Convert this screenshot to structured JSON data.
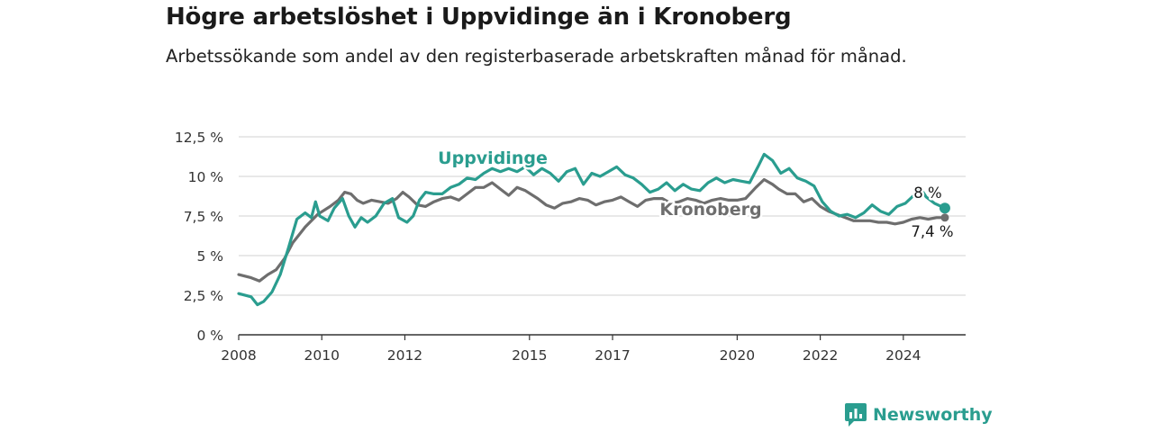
{
  "header": {
    "title": "Högre arbetslöshet i Uppvidinge än i Kronoberg",
    "subtitle": "Arbetssökande som andel av den registerbaserade arbetskraften månad för månad."
  },
  "brand": {
    "name": "Newsworthy",
    "color": "#2a9d8f"
  },
  "chart_data": {
    "type": "line",
    "title": "Högre arbetslöshet i Uppvidinge än i Kronoberg",
    "subtitle": "Arbetssökande som andel av den registerbaserade arbetskraften månad för månad.",
    "xlabel": "",
    "ylabel": "",
    "ylim": [
      0,
      12.5
    ],
    "yticks": [
      0,
      2.5,
      5,
      7.5,
      10,
      12.5
    ],
    "ytick_labels": [
      "0 %",
      "2,5 %",
      "5 %",
      "7,5 %",
      "10 %",
      "12,5 %"
    ],
    "xlim": [
      2008,
      2025.5
    ],
    "xticks": [
      2008,
      2010,
      2012,
      2015,
      2017,
      2020,
      2022,
      2024
    ],
    "xtick_labels": [
      "2008",
      "2010",
      "2012",
      "2015",
      "2017",
      "2020",
      "2022",
      "2024"
    ],
    "grid": "horizontal",
    "series": [
      {
        "name": "Kronoberg",
        "color": "#6e6e6e",
        "end_label": "7,4 %",
        "points": [
          [
            2008.0,
            3.8
          ],
          [
            2008.3,
            3.6
          ],
          [
            2008.5,
            3.4
          ],
          [
            2008.7,
            3.8
          ],
          [
            2008.9,
            4.1
          ],
          [
            2009.1,
            4.8
          ],
          [
            2009.3,
            5.8
          ],
          [
            2009.6,
            6.8
          ],
          [
            2009.9,
            7.6
          ],
          [
            2010.2,
            8.1
          ],
          [
            2010.4,
            8.5
          ],
          [
            2010.55,
            9.0
          ],
          [
            2010.7,
            8.9
          ],
          [
            2010.85,
            8.5
          ],
          [
            2011.0,
            8.3
          ],
          [
            2011.2,
            8.5
          ],
          [
            2011.4,
            8.4
          ],
          [
            2011.6,
            8.3
          ],
          [
            2011.8,
            8.6
          ],
          [
            2011.95,
            9.0
          ],
          [
            2012.1,
            8.7
          ],
          [
            2012.3,
            8.2
          ],
          [
            2012.5,
            8.1
          ],
          [
            2012.7,
            8.4
          ],
          [
            2012.9,
            8.6
          ],
          [
            2013.1,
            8.7
          ],
          [
            2013.3,
            8.5
          ],
          [
            2013.5,
            8.9
          ],
          [
            2013.7,
            9.3
          ],
          [
            2013.9,
            9.3
          ],
          [
            2014.1,
            9.6
          ],
          [
            2014.3,
            9.2
          ],
          [
            2014.5,
            8.8
          ],
          [
            2014.7,
            9.3
          ],
          [
            2014.9,
            9.1
          ],
          [
            2015.2,
            8.6
          ],
          [
            2015.4,
            8.2
          ],
          [
            2015.6,
            8.0
          ],
          [
            2015.8,
            8.3
          ],
          [
            2016.0,
            8.4
          ],
          [
            2016.2,
            8.6
          ],
          [
            2016.4,
            8.5
          ],
          [
            2016.6,
            8.2
          ],
          [
            2016.8,
            8.4
          ],
          [
            2017.0,
            8.5
          ],
          [
            2017.2,
            8.7
          ],
          [
            2017.4,
            8.4
          ],
          [
            2017.6,
            8.1
          ],
          [
            2017.8,
            8.5
          ],
          [
            2018.0,
            8.6
          ],
          [
            2018.2,
            8.6
          ],
          [
            2018.4,
            8.3
          ],
          [
            2018.6,
            8.4
          ],
          [
            2018.8,
            8.6
          ],
          [
            2019.0,
            8.5
          ],
          [
            2019.2,
            8.3
          ],
          [
            2019.4,
            8.5
          ],
          [
            2019.6,
            8.6
          ],
          [
            2019.8,
            8.5
          ],
          [
            2020.0,
            8.5
          ],
          [
            2020.2,
            8.6
          ],
          [
            2020.45,
            9.3
          ],
          [
            2020.65,
            9.8
          ],
          [
            2020.85,
            9.5
          ],
          [
            2021.0,
            9.2
          ],
          [
            2021.2,
            8.9
          ],
          [
            2021.4,
            8.9
          ],
          [
            2021.6,
            8.4
          ],
          [
            2021.8,
            8.6
          ],
          [
            2022.0,
            8.1
          ],
          [
            2022.2,
            7.8
          ],
          [
            2022.4,
            7.6
          ],
          [
            2022.6,
            7.4
          ],
          [
            2022.8,
            7.2
          ],
          [
            2023.0,
            7.2
          ],
          [
            2023.2,
            7.2
          ],
          [
            2023.4,
            7.1
          ],
          [
            2023.6,
            7.1
          ],
          [
            2023.8,
            7.0
          ],
          [
            2024.0,
            7.1
          ],
          [
            2024.2,
            7.3
          ],
          [
            2024.4,
            7.4
          ],
          [
            2024.6,
            7.3
          ],
          [
            2024.8,
            7.4
          ],
          [
            2025.0,
            7.4
          ]
        ]
      },
      {
        "name": "Uppvidinge",
        "color": "#2a9d8f",
        "end_label": "8 %",
        "points": [
          [
            2008.0,
            2.6
          ],
          [
            2008.3,
            2.4
          ],
          [
            2008.45,
            1.9
          ],
          [
            2008.6,
            2.1
          ],
          [
            2008.8,
            2.7
          ],
          [
            2009.0,
            3.8
          ],
          [
            2009.2,
            5.5
          ],
          [
            2009.4,
            7.3
          ],
          [
            2009.6,
            7.7
          ],
          [
            2009.75,
            7.4
          ],
          [
            2009.85,
            8.4
          ],
          [
            2009.95,
            7.5
          ],
          [
            2010.15,
            7.2
          ],
          [
            2010.3,
            8.0
          ],
          [
            2010.5,
            8.6
          ],
          [
            2010.65,
            7.5
          ],
          [
            2010.8,
            6.8
          ],
          [
            2010.95,
            7.4
          ],
          [
            2011.1,
            7.1
          ],
          [
            2011.3,
            7.5
          ],
          [
            2011.5,
            8.3
          ],
          [
            2011.7,
            8.6
          ],
          [
            2011.85,
            7.4
          ],
          [
            2012.05,
            7.1
          ],
          [
            2012.2,
            7.5
          ],
          [
            2012.35,
            8.5
          ],
          [
            2012.5,
            9.0
          ],
          [
            2012.7,
            8.9
          ],
          [
            2012.9,
            8.9
          ],
          [
            2013.1,
            9.3
          ],
          [
            2013.3,
            9.5
          ],
          [
            2013.5,
            9.9
          ],
          [
            2013.7,
            9.8
          ],
          [
            2013.9,
            10.2
          ],
          [
            2014.1,
            10.5
          ],
          [
            2014.3,
            10.3
          ],
          [
            2014.5,
            10.5
          ],
          [
            2014.7,
            10.3
          ],
          [
            2014.9,
            10.6
          ],
          [
            2015.1,
            10.1
          ],
          [
            2015.3,
            10.5
          ],
          [
            2015.5,
            10.2
          ],
          [
            2015.7,
            9.7
          ],
          [
            2015.9,
            10.3
          ],
          [
            2016.1,
            10.5
          ],
          [
            2016.3,
            9.5
          ],
          [
            2016.5,
            10.2
          ],
          [
            2016.7,
            10.0
          ],
          [
            2016.9,
            10.3
          ],
          [
            2017.1,
            10.6
          ],
          [
            2017.3,
            10.1
          ],
          [
            2017.5,
            9.9
          ],
          [
            2017.7,
            9.5
          ],
          [
            2017.9,
            9.0
          ],
          [
            2018.1,
            9.2
          ],
          [
            2018.3,
            9.6
          ],
          [
            2018.5,
            9.1
          ],
          [
            2018.7,
            9.5
          ],
          [
            2018.9,
            9.2
          ],
          [
            2019.1,
            9.1
          ],
          [
            2019.3,
            9.6
          ],
          [
            2019.5,
            9.9
          ],
          [
            2019.7,
            9.6
          ],
          [
            2019.9,
            9.8
          ],
          [
            2020.1,
            9.7
          ],
          [
            2020.3,
            9.6
          ],
          [
            2020.5,
            10.6
          ],
          [
            2020.65,
            11.4
          ],
          [
            2020.85,
            11.0
          ],
          [
            2021.05,
            10.2
          ],
          [
            2021.25,
            10.5
          ],
          [
            2021.45,
            9.9
          ],
          [
            2021.65,
            9.7
          ],
          [
            2021.85,
            9.4
          ],
          [
            2022.05,
            8.4
          ],
          [
            2022.25,
            7.8
          ],
          [
            2022.45,
            7.5
          ],
          [
            2022.65,
            7.6
          ],
          [
            2022.85,
            7.4
          ],
          [
            2023.05,
            7.7
          ],
          [
            2023.25,
            8.2
          ],
          [
            2023.45,
            7.8
          ],
          [
            2023.65,
            7.6
          ],
          [
            2023.85,
            8.1
          ],
          [
            2024.05,
            8.3
          ],
          [
            2024.25,
            8.8
          ],
          [
            2024.4,
            9.3
          ],
          [
            2024.55,
            8.7
          ],
          [
            2024.75,
            8.3
          ],
          [
            2025.0,
            8.0
          ]
        ]
      }
    ]
  }
}
